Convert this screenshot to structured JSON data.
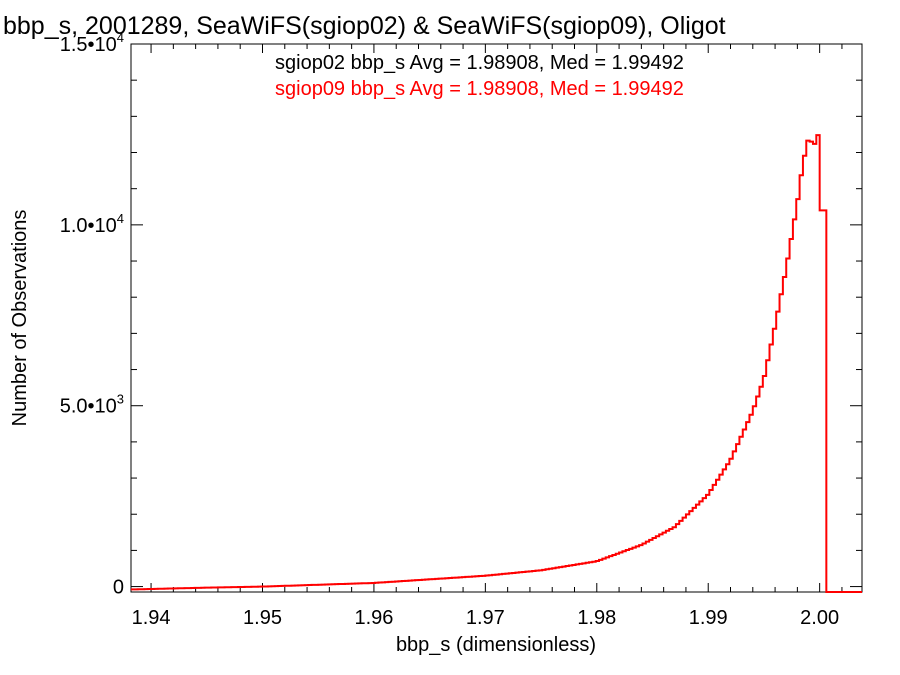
{
  "chart_data": {
    "type": "line",
    "title": "bbp_s, 2001289, SeaWiFS(sgiop02) & SeaWiFS(sgiop09), Oligot",
    "xlabel": "bbp_s (dimensionless)",
    "ylabel": "Number of Observations",
    "xlim": [
      1.9382,
      2.0038
    ],
    "ylim": [
      -150,
      15000
    ],
    "x_ticks": [
      1.94,
      1.95,
      1.96,
      1.97,
      1.98,
      1.99,
      2.0
    ],
    "x_tick_labels": [
      "1.94",
      "1.95",
      "1.96",
      "1.97",
      "1.98",
      "1.99",
      "2.00"
    ],
    "y_ticks": [
      0,
      5000,
      10000,
      15000
    ],
    "y_tick_labels": [
      {
        "mantissa": "0",
        "exp": ""
      },
      {
        "mantissa": "5.0•10",
        "exp": "3"
      },
      {
        "mantissa": "1.0•10",
        "exp": "4"
      },
      {
        "mantissa": "1.5•10",
        "exp": "4"
      }
    ],
    "annotations": [
      {
        "text": "sgiop02 bbp_s Avg = 1.98908, Med = 1.99492",
        "color": "#000000"
      },
      {
        "text": "sgiop09 bbp_s Avg = 1.98908, Med = 1.99492",
        "color": "#ff0000"
      }
    ],
    "series": [
      {
        "color": "#ff0000",
        "x": [
          1.9382,
          1.945,
          1.95,
          1.955,
          1.96,
          1.965,
          1.97,
          1.975,
          1.98,
          1.984,
          1.987,
          1.99,
          1.992,
          1.994,
          1.995,
          1.996,
          1.997,
          1.998,
          1.9985,
          1.999,
          1.9995,
          2.0
        ],
        "y": [
          -80,
          -30,
          0,
          50,
          100,
          200,
          300,
          450,
          700,
          1150,
          1650,
          2550,
          3500,
          4850,
          5750,
          7200,
          8800,
          10600,
          11700,
          12400,
          12200,
          12600
        ]
      }
    ]
  }
}
